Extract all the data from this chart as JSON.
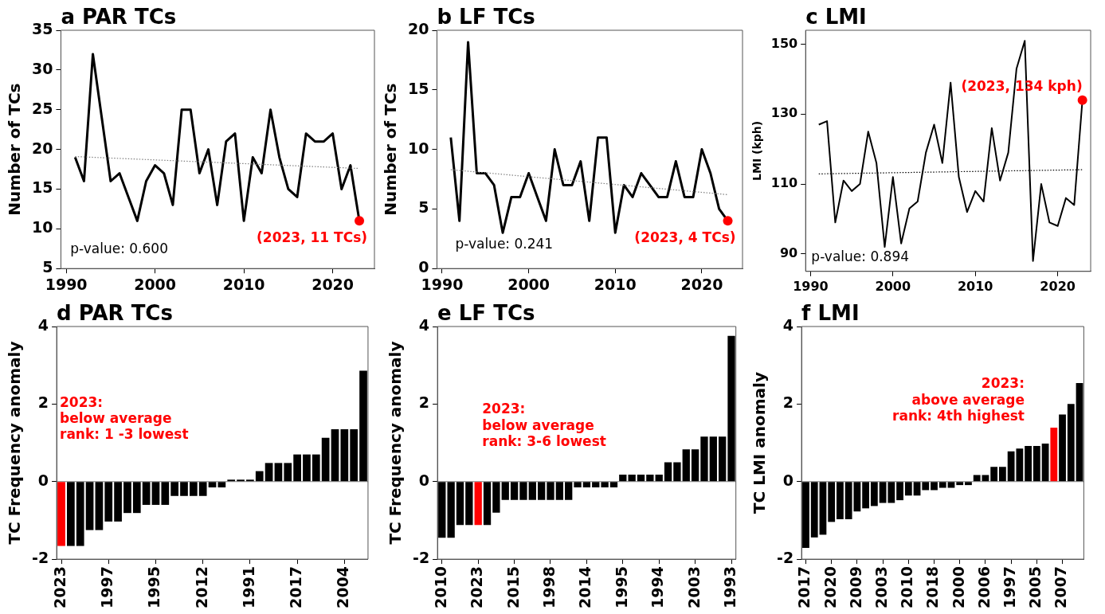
{
  "chart_data": [
    {
      "type": "line",
      "title": "a PAR TCs",
      "ylabel": "Number of TCs",
      "xlim": [
        1989.4,
        2024.7
      ],
      "xticks": [
        1990,
        2000,
        2010,
        2020
      ],
      "ylim": [
        5,
        35
      ],
      "yticks": [
        5,
        10,
        15,
        20,
        25,
        30,
        35
      ],
      "series": [
        {
          "type": "line",
          "color": "#000000",
          "x": [
            1991,
            1992,
            1993,
            1994,
            1995,
            1996,
            1997,
            1998,
            1999,
            2000,
            2001,
            2002,
            2003,
            2004,
            2005,
            2006,
            2007,
            2008,
            2009,
            2010,
            2011,
            2012,
            2013,
            2014,
            2015,
            2016,
            2017,
            2018,
            2019,
            2020,
            2021,
            2022,
            2023
          ],
          "values": [
            19,
            16,
            32,
            24,
            16,
            17,
            14,
            11,
            16,
            18,
            17,
            13,
            25,
            25,
            17,
            20,
            13,
            21,
            22,
            11,
            19,
            17,
            25,
            19,
            15,
            14,
            22,
            21,
            21,
            22,
            15,
            18,
            11
          ]
        },
        {
          "type": "line",
          "color": "#808080",
          "line_style": "dotted",
          "x": [
            1991,
            2023
          ],
          "values": [
            19.1,
            17.6
          ]
        },
        {
          "type": "scatter",
          "color": "#ff0000",
          "marker": "circle",
          "x": [
            2023
          ],
          "values": [
            11
          ]
        }
      ],
      "annotations": [
        "p-value: 0.600",
        "(2023, 11 TCs)"
      ]
    },
    {
      "type": "line",
      "title": "b LF TCs",
      "ylabel": "Number of TCs",
      "xlim": [
        1989.4,
        2024.7
      ],
      "xticks": [
        1990,
        2000,
        2010,
        2020
      ],
      "ylim": [
        0,
        20
      ],
      "yticks": [
        0,
        5,
        10,
        15,
        20
      ],
      "series": [
        {
          "type": "line",
          "color": "#000000",
          "x": [
            1991,
            1992,
            1993,
            1994,
            1995,
            1996,
            1997,
            1998,
            1999,
            2000,
            2001,
            2002,
            2003,
            2004,
            2005,
            2006,
            2007,
            2008,
            2009,
            2010,
            2011,
            2012,
            2013,
            2014,
            2015,
            2016,
            2017,
            2018,
            2019,
            2020,
            2021,
            2022,
            2023
          ],
          "values": [
            11,
            4,
            19,
            8,
            8,
            7,
            3,
            6,
            6,
            8,
            6,
            4,
            10,
            7,
            7,
            9,
            4,
            11,
            11,
            3,
            7,
            6,
            8,
            7,
            6,
            6,
            9,
            6,
            6,
            10,
            8,
            5,
            4
          ]
        },
        {
          "type": "line",
          "color": "#808080",
          "line_style": "dotted",
          "x": [
            1991,
            2023
          ],
          "values": [
            8.3,
            6.2
          ]
        },
        {
          "type": "scatter",
          "color": "#ff0000",
          "marker": "circle",
          "x": [
            2023
          ],
          "values": [
            4
          ]
        }
      ],
      "annotations": [
        "p-value: 0.241",
        "(2023, 4 TCs)"
      ]
    },
    {
      "type": "line",
      "title": "c LMI",
      "ylabel": "LMI (kph)",
      "xlim": [
        1989.4,
        2024
      ],
      "xticks": [
        1990,
        2000,
        2010,
        2020
      ],
      "ylim": [
        85,
        154
      ],
      "yticks": [
        90,
        110,
        130,
        150
      ],
      "series": [
        {
          "type": "line",
          "color": "#000000",
          "x": [
            1991,
            1992,
            1993,
            1994,
            1995,
            1996,
            1997,
            1998,
            1999,
            2000,
            2001,
            2002,
            2003,
            2004,
            2005,
            2006,
            2007,
            2008,
            2009,
            2010,
            2011,
            2012,
            2013,
            2014,
            2015,
            2016,
            2017,
            2018,
            2019,
            2020,
            2021,
            2022,
            2023
          ],
          "values": [
            127,
            128,
            99,
            111,
            108,
            110,
            125,
            116,
            92,
            112,
            93,
            103,
            105,
            119,
            127,
            116,
            139,
            112,
            102,
            108,
            105,
            126,
            111,
            119,
            143,
            151,
            88,
            110,
            99,
            98,
            106,
            104,
            134
          ]
        },
        {
          "type": "line",
          "color": "#000000",
          "line_style": "dotted",
          "x": [
            1991,
            2023
          ],
          "values": [
            112.9,
            114.1
          ]
        },
        {
          "type": "scatter",
          "color": "#ff0000",
          "marker": "circle",
          "x": [
            2023
          ],
          "values": [
            134
          ]
        }
      ],
      "annotations": [
        "p-value: 0.894",
        "(2023, 134 kph)"
      ]
    },
    {
      "type": "bar",
      "title": "d PAR TCs",
      "ylabel": "TC Frequency anomaly",
      "ylim": [
        -2,
        4
      ],
      "yticks": [
        -2,
        0,
        2,
        4
      ],
      "categories": [
        "2023",
        null,
        null,
        null,
        null,
        "1997",
        null,
        null,
        null,
        null,
        "1995",
        null,
        null,
        null,
        null,
        "2012",
        null,
        null,
        null,
        null,
        "1991",
        null,
        null,
        null,
        null,
        "2017",
        null,
        null,
        null,
        null,
        "2004",
        null,
        null
      ],
      "values": [
        -1.66,
        -1.66,
        -1.66,
        -1.25,
        -1.25,
        -1.03,
        -1.03,
        -0.81,
        -0.81,
        -0.6,
        -0.6,
        -0.6,
        -0.37,
        -0.37,
        -0.37,
        -0.37,
        -0.15,
        -0.15,
        0.05,
        0.05,
        0.05,
        0.27,
        0.48,
        0.48,
        0.48,
        0.7,
        0.7,
        0.7,
        1.13,
        1.35,
        1.35,
        1.35,
        2.86
      ],
      "colors": [
        "#ff0000",
        "#000000",
        "#000000",
        "#000000",
        "#000000",
        "#000000",
        "#000000",
        "#000000",
        "#000000",
        "#000000",
        "#000000",
        "#000000",
        "#000000",
        "#000000",
        "#000000",
        "#000000",
        "#000000",
        "#000000",
        "#000000",
        "#000000",
        "#000000",
        "#000000",
        "#000000",
        "#000000",
        "#000000",
        "#000000",
        "#000000",
        "#000000",
        "#000000",
        "#000000",
        "#000000",
        "#000000",
        "#000000"
      ],
      "ref_lines": [
        {
          "axis": "y",
          "value": 0,
          "color": "#808080"
        }
      ],
      "annotations": [
        "2023:\nbelow average\nrank: 1 -3 lowest"
      ]
    },
    {
      "type": "bar",
      "title": "e LF TCs",
      "ylabel": "TC Frequency anomaly",
      "ylim": [
        -2,
        4
      ],
      "yticks": [
        -2,
        0,
        2,
        4
      ],
      "categories": [
        "2010",
        null,
        null,
        null,
        "2023",
        null,
        null,
        null,
        "2015",
        null,
        null,
        null,
        "1998",
        null,
        null,
        null,
        "2014",
        null,
        null,
        null,
        "1995",
        null,
        null,
        null,
        "1994",
        null,
        null,
        null,
        "2003",
        null,
        null,
        null,
        "1993"
      ],
      "values": [
        -1.45,
        -1.45,
        -1.12,
        -1.12,
        -1.12,
        -1.12,
        -0.8,
        -0.47,
        -0.47,
        -0.47,
        -0.47,
        -0.47,
        -0.47,
        -0.47,
        -0.47,
        -0.15,
        -0.15,
        -0.15,
        -0.15,
        -0.15,
        0.18,
        0.18,
        0.18,
        0.18,
        0.18,
        0.5,
        0.5,
        0.83,
        0.83,
        1.16,
        1.16,
        1.16,
        3.76
      ],
      "colors": [
        "#000000",
        "#000000",
        "#000000",
        "#000000",
        "#ff0000",
        "#000000",
        "#000000",
        "#000000",
        "#000000",
        "#000000",
        "#000000",
        "#000000",
        "#000000",
        "#000000",
        "#000000",
        "#000000",
        "#000000",
        "#000000",
        "#000000",
        "#000000",
        "#000000",
        "#000000",
        "#000000",
        "#000000",
        "#000000",
        "#000000",
        "#000000",
        "#000000",
        "#000000",
        "#000000",
        "#000000",
        "#000000",
        "#000000"
      ],
      "ref_lines": [
        {
          "axis": "y",
          "value": 0,
          "color": "#808080"
        }
      ],
      "annotations": [
        "2023:\nbelow average\nrank: 3-6 lowest"
      ]
    },
    {
      "type": "bar",
      "title": "f LMI",
      "ylabel": "TC LMI anomaly",
      "ylim": [
        -2,
        4
      ],
      "yticks": [
        -2,
        0,
        2,
        4
      ],
      "categories": [
        "2017",
        null,
        null,
        "2020",
        null,
        null,
        "2009",
        null,
        null,
        "2003",
        null,
        null,
        "2010",
        null,
        null,
        "2018",
        null,
        null,
        "2000",
        null,
        null,
        "2006",
        null,
        null,
        "1997",
        null,
        null,
        "2005",
        null,
        null,
        "2007",
        null,
        null
      ],
      "values": [
        -1.71,
        -1.44,
        -1.37,
        -1.04,
        -0.97,
        -0.97,
        -0.77,
        -0.69,
        -0.63,
        -0.55,
        -0.55,
        -0.48,
        -0.36,
        -0.36,
        -0.22,
        -0.22,
        -0.16,
        -0.16,
        -0.09,
        -0.09,
        0.17,
        0.17,
        0.38,
        0.38,
        0.78,
        0.85,
        0.92,
        0.92,
        0.98,
        1.39,
        1.73,
        2.0,
        2.54
      ],
      "colors": [
        "#000000",
        "#000000",
        "#000000",
        "#000000",
        "#000000",
        "#000000",
        "#000000",
        "#000000",
        "#000000",
        "#000000",
        "#000000",
        "#000000",
        "#000000",
        "#000000",
        "#000000",
        "#000000",
        "#000000",
        "#000000",
        "#000000",
        "#000000",
        "#000000",
        "#000000",
        "#000000",
        "#000000",
        "#000000",
        "#000000",
        "#000000",
        "#000000",
        "#000000",
        "#ff0000",
        "#000000",
        "#000000",
        "#000000"
      ],
      "ref_lines": [
        {
          "axis": "y",
          "value": 0,
          "color": "#808080"
        }
      ],
      "annotations": [
        "2023:\nabove average\nrank: 4th highest"
      ]
    }
  ]
}
